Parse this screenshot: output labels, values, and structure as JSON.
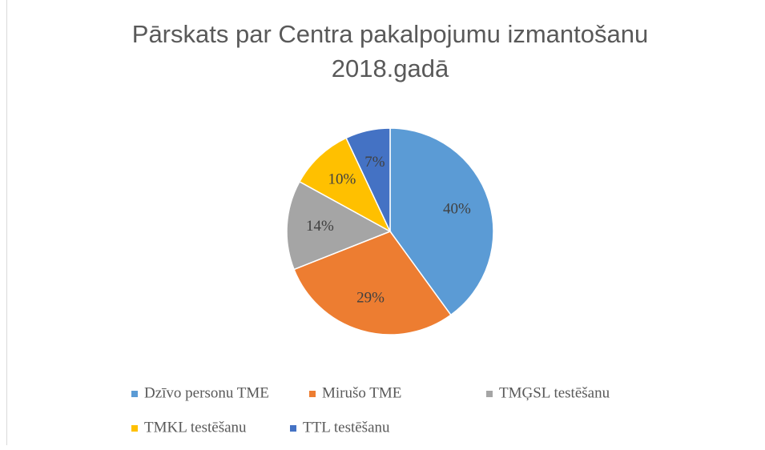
{
  "chart_data": {
    "type": "pie",
    "title": [
      "Pārskats par Centra pakalpojumu izmantošanu",
      "2018.gadā"
    ],
    "categories": [
      "Dzīvo personu TME",
      "Mirušo  TME",
      "TMĢSL testēšanu",
      "TMKL testēšanu",
      "TTL  testēšanu"
    ],
    "values": [
      40,
      29,
      14,
      10,
      7
    ],
    "value_labels": [
      "40%",
      "29%",
      "14%",
      "10%",
      "7%"
    ],
    "colors": [
      "#5b9bd5",
      "#ed7d31",
      "#a5a5a5",
      "#ffc000",
      "#4472c4"
    ],
    "legend": "bottom"
  }
}
